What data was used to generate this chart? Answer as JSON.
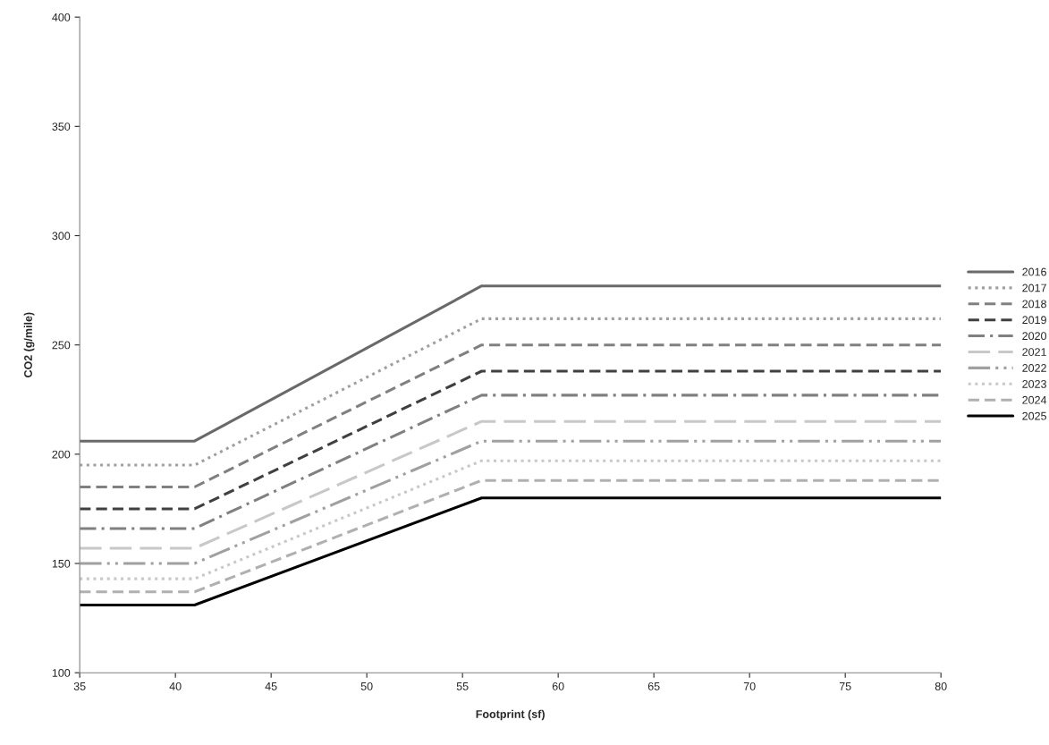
{
  "chart_data": {
    "type": "line",
    "xlabel": "Footprint (sf)",
    "ylabel": "CO2 (g/mile)",
    "x": [
      35,
      41,
      56,
      80
    ],
    "xlim": [
      35,
      80
    ],
    "xticks": [
      35,
      40,
      45,
      50,
      55,
      60,
      65,
      70,
      75,
      80
    ],
    "ylim": [
      100,
      400
    ],
    "yticks": [
      100,
      150,
      200,
      250,
      300,
      350,
      400
    ],
    "grid": false,
    "legend": "right",
    "marker": "none",
    "series": [
      {
        "name": "2016",
        "color": "#696969",
        "line_style": "solid",
        "values": [
          206,
          206,
          277,
          277
        ]
      },
      {
        "name": "2017",
        "color": "#a0a0a0",
        "line_style": "dotted",
        "values": [
          195,
          195,
          262,
          262
        ]
      },
      {
        "name": "2018",
        "color": "#808080",
        "line_style": "dashed",
        "values": [
          185,
          185,
          250,
          250
        ]
      },
      {
        "name": "2019",
        "color": "#404040",
        "line_style": "dashed",
        "values": [
          175,
          175,
          238,
          238
        ]
      },
      {
        "name": "2020",
        "color": "#808080",
        "line_style": "dashdot",
        "values": [
          166,
          166,
          227,
          227
        ]
      },
      {
        "name": "2021",
        "color": "#c8c8c8",
        "line_style": "longdash",
        "values": [
          157,
          157,
          215,
          215
        ]
      },
      {
        "name": "2022",
        "color": "#a0a0a0",
        "line_style": "dashdotdot",
        "values": [
          150,
          150,
          206,
          206
        ]
      },
      {
        "name": "2023",
        "color": "#c8c8c8",
        "line_style": "dotted",
        "values": [
          143,
          143,
          197,
          197
        ]
      },
      {
        "name": "2024",
        "color": "#b0b0b0",
        "line_style": "dashed",
        "values": [
          137,
          137,
          188,
          188
        ]
      },
      {
        "name": "2025",
        "color": "#000000",
        "line_style": "solid",
        "values": [
          131,
          131,
          180,
          180
        ]
      }
    ]
  }
}
